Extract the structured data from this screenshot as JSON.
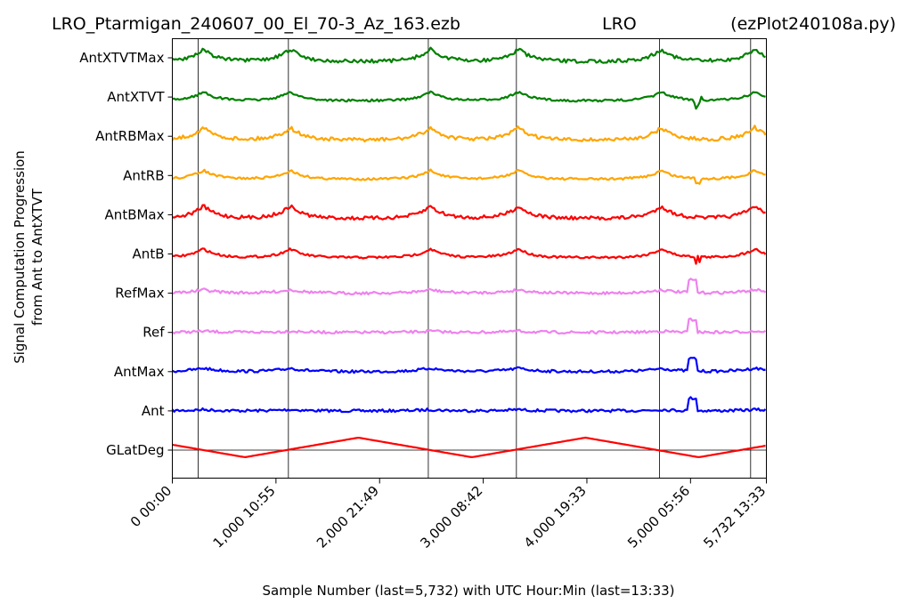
{
  "chart_data": {
    "type": "line",
    "title_left": "LRO_Ptarmigan_240607_00_El_70-3_Az_163.ezb",
    "title_center": "LRO",
    "title_right": "(ezPlot240108a.py)",
    "xlabel": "Sample Number (last=5,732) with UTC Hour:Min (last=13:33)",
    "ylabel_line1": "Signal Computation Progression",
    "ylabel_line2": "from Ant to AntXTVT",
    "xlim": [
      0,
      5732
    ],
    "x_ticks": [
      {
        "value": 0,
        "label": "0  00:00"
      },
      {
        "value": 1000,
        "label": "1,000  10:55"
      },
      {
        "value": 2000,
        "label": "2,000  21:49"
      },
      {
        "value": 3000,
        "label": "3,000  08:42"
      },
      {
        "value": 4000,
        "label": "4,000  19:33"
      },
      {
        "value": 5000,
        "label": "5,000  05:56"
      },
      {
        "value": 5732,
        "label": "5,732  13:33"
      }
    ],
    "vertical_lines": [
      250,
      1120,
      2470,
      3320,
      4700,
      5580
    ],
    "galactic_zero_line": true,
    "series": [
      {
        "name": "GLatDeg",
        "color": "#ff0000"
      },
      {
        "name": "Ant",
        "color": "#0000ff"
      },
      {
        "name": "AntMax",
        "color": "#0000ff"
      },
      {
        "name": "Ref",
        "color": "#ee82ee"
      },
      {
        "name": "RefMax",
        "color": "#ee82ee"
      },
      {
        "name": "AntB",
        "color": "#ff0000"
      },
      {
        "name": "AntBMax",
        "color": "#ff0000"
      },
      {
        "name": "AntRB",
        "color": "#ffa500"
      },
      {
        "name": "AntRBMax",
        "color": "#ffa500"
      },
      {
        "name": "AntXTVT",
        "color": "#008000"
      },
      {
        "name": "AntXTVTMax",
        "color": "#008000"
      }
    ],
    "grid": false
  }
}
